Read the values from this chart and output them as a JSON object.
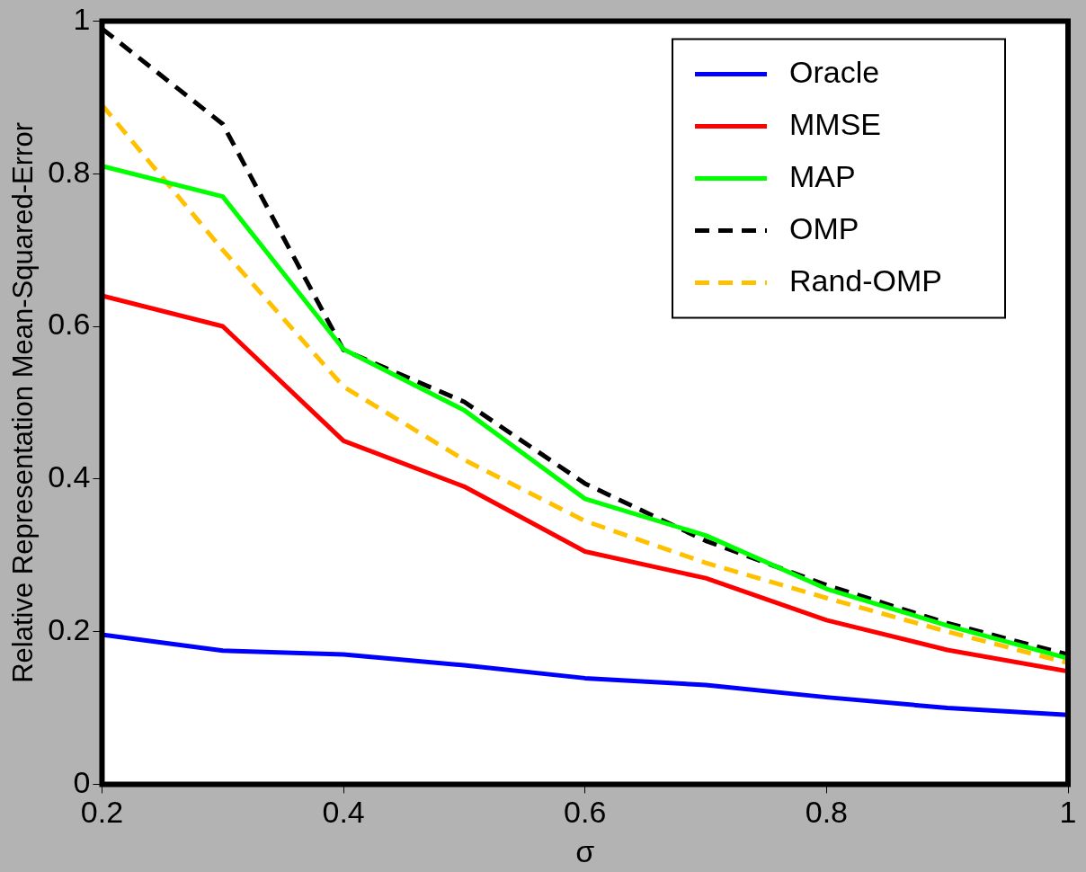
{
  "chart_data": {
    "type": "line",
    "xlabel": "σ",
    "ylabel": "Relative Representation Mean-Squared-Error",
    "x": [
      0.2,
      0.3,
      0.4,
      0.5,
      0.6,
      0.7,
      0.8,
      0.9,
      1.0
    ],
    "series": [
      {
        "name": "Oracle",
        "color": "#0000ff",
        "values": [
          0.196,
          0.175,
          0.17,
          0.156,
          0.139,
          0.13,
          0.114,
          0.1,
          0.091
        ]
      },
      {
        "name": "MMSE",
        "color": "#ff0000",
        "values": [
          0.64,
          0.6,
          0.45,
          0.39,
          0.305,
          0.27,
          0.215,
          0.176,
          0.148
        ]
      },
      {
        "name": "MAP",
        "color": "#00ff00",
        "values": [
          0.81,
          0.77,
          0.57,
          0.49,
          0.374,
          0.326,
          0.256,
          0.208,
          0.165
        ]
      },
      {
        "name": "OMP",
        "color": "#000000",
        "line_style": "dashed",
        "values": [
          0.99,
          0.865,
          0.569,
          0.501,
          0.394,
          0.319,
          0.261,
          0.211,
          0.17
        ]
      },
      {
        "name": "Rand-OMP",
        "color": "#ffc000",
        "line_style": "dashed",
        "values": [
          0.89,
          0.7,
          0.521,
          0.425,
          0.345,
          0.29,
          0.244,
          0.2,
          0.159
        ]
      }
    ],
    "xlim": [
      0.2,
      1
    ],
    "xticks": [
      0.2,
      0.4,
      0.6,
      0.8,
      1
    ],
    "ylim": [
      0,
      1
    ],
    "yticks": [
      0,
      0.2,
      0.4,
      0.6,
      0.8,
      1
    ],
    "grid": false,
    "legend": "top right",
    "marker": "none"
  }
}
